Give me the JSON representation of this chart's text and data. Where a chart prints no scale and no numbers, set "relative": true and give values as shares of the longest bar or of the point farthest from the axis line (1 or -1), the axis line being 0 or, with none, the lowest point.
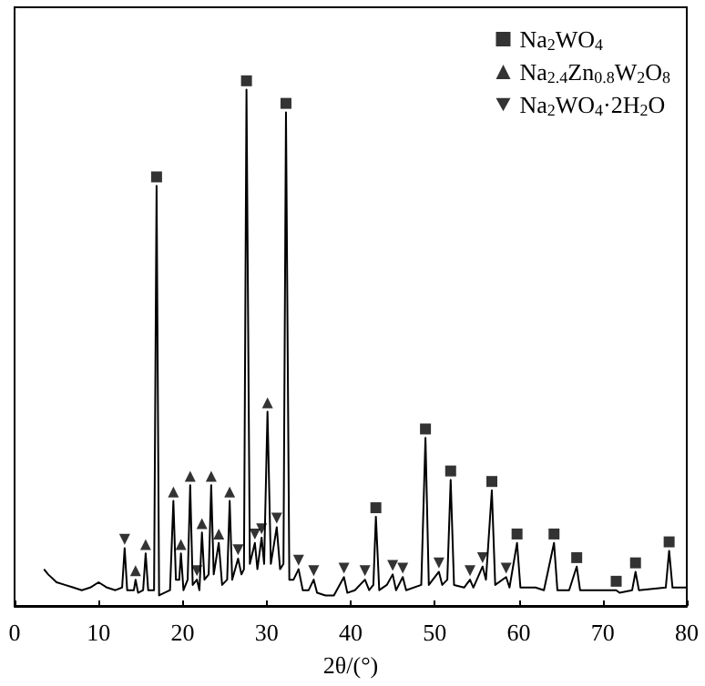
{
  "chart_data": {
    "type": "line",
    "relative": true,
    "xlabel": "2θ/(°)",
    "xlim": [
      0,
      80
    ],
    "xticks": [
      0,
      10,
      20,
      30,
      40,
      50,
      60,
      70,
      80
    ],
    "grid": false,
    "legend": "top right",
    "tick_labels": "x",
    "series": [
      {
        "color": "#000000",
        "marker": "none",
        "line_style": "solid",
        "x": [
          3.5,
          4,
          5,
          6,
          7,
          8,
          9,
          10,
          11,
          12,
          12.8,
          13.1,
          13.4,
          14.2,
          14.4,
          14.7,
          15.3,
          15.6,
          15.9,
          16.6,
          16.9,
          17.2,
          18.5,
          18.9,
          19.2,
          19.6,
          19.8,
          20.1,
          20.6,
          20.9,
          21.2,
          21.7,
          22.0,
          22.3,
          22.6,
          23.1,
          23.4,
          23.7,
          24.3,
          24.7,
          25.3,
          25.6,
          25.9,
          26.6,
          27.0,
          27.3,
          27.6,
          28.0,
          28.6,
          28.9,
          29.4,
          29.7,
          30.1,
          30.5,
          31.2,
          31.6,
          32.0,
          32.3,
          32.7,
          33.2,
          33.8,
          34.3,
          35.0,
          35.6,
          36.0,
          37,
          38,
          39.2,
          39.6,
          40.5,
          41.7,
          42.2,
          42.7,
          43.0,
          43.4,
          44.3,
          45.0,
          45.4,
          46.2,
          46.6,
          48.4,
          48.9,
          49.3,
          50.5,
          50.9,
          51.5,
          51.9,
          52.3,
          53.5,
          54.2,
          54.6,
          55.7,
          56.1,
          56.8,
          57.2,
          58.5,
          58.9,
          59.8,
          60.2,
          62,
          63,
          64.2,
          64.6,
          66,
          66.9,
          67.3,
          69,
          71.6,
          72,
          73.5,
          73.9,
          74.3,
          77.5,
          77.9,
          78.3,
          80
        ],
        "values": [
          0.07,
          0.06,
          0.045,
          0.04,
          0.035,
          0.03,
          0.035,
          0.045,
          0.035,
          0.03,
          0.035,
          0.11,
          0.03,
          0.03,
          0.05,
          0.025,
          0.03,
          0.1,
          0.03,
          0.03,
          0.8,
          0.02,
          0.03,
          0.2,
          0.05,
          0.05,
          0.1,
          0.03,
          0.05,
          0.23,
          0.04,
          0.05,
          0.03,
          0.14,
          0.05,
          0.06,
          0.23,
          0.06,
          0.12,
          0.04,
          0.05,
          0.2,
          0.05,
          0.09,
          0.06,
          0.07,
          0.983,
          0.08,
          0.12,
          0.07,
          0.13,
          0.08,
          0.37,
          0.08,
          0.15,
          0.07,
          0.08,
          0.94,
          0.05,
          0.05,
          0.07,
          0.03,
          0.03,
          0.05,
          0.025,
          0.02,
          0.02,
          0.055,
          0.025,
          0.03,
          0.05,
          0.03,
          0.04,
          0.17,
          0.03,
          0.04,
          0.06,
          0.03,
          0.055,
          0.03,
          0.04,
          0.32,
          0.04,
          0.065,
          0.04,
          0.05,
          0.24,
          0.04,
          0.035,
          0.05,
          0.035,
          0.075,
          0.05,
          0.22,
          0.04,
          0.055,
          0.035,
          0.12,
          0.035,
          0.035,
          0.03,
          0.12,
          0.03,
          0.03,
          0.075,
          0.03,
          0.03,
          0.03,
          0.025,
          0.03,
          0.065,
          0.03,
          0.035,
          0.105,
          0.035,
          0.035
        ]
      },
      {
        "type": "scatter",
        "name": "Na$_{2}$WO$_{4}$",
        "color": "#000000",
        "marker": "square",
        "x": [
          16.9,
          27.6,
          32.3,
          43.0,
          48.9,
          51.9,
          56.8,
          59.8,
          64.2,
          66.9,
          71.6,
          73.9,
          77.9
        ],
        "values": [
          0.817,
          1.0,
          0.957,
          0.187,
          0.337,
          0.257,
          0.237,
          0.137,
          0.137,
          0.092,
          0.047,
          0.082,
          0.122
        ]
      },
      {
        "type": "scatter",
        "name": "Na$_{2.4}$Zn$_{0.8}$W$_{2}$O$_{8}$",
        "color": "#000000",
        "marker": "triangle",
        "x": [
          14.4,
          15.6,
          18.9,
          19.8,
          20.9,
          22.3,
          23.4,
          24.3,
          25.6,
          30.1
        ],
        "values": [
          0.067,
          0.117,
          0.217,
          0.117,
          0.247,
          0.157,
          0.247,
          0.137,
          0.217,
          0.387
        ]
      },
      {
        "type": "scatter",
        "name": "Na$_{2}$WO$_{4}$·2H$_{2}$O",
        "color": "#000000",
        "marker": "triangle_down",
        "x": [
          13.1,
          21.7,
          26.6,
          28.6,
          29.4,
          31.2,
          33.8,
          35.6,
          39.2,
          41.7,
          45.0,
          46.2,
          50.5,
          54.2,
          55.7,
          58.5
        ],
        "values": [
          0.127,
          0.067,
          0.107,
          0.137,
          0.147,
          0.167,
          0.087,
          0.067,
          0.072,
          0.067,
          0.077,
          0.072,
          0.082,
          0.067,
          0.092,
          0.072
        ]
      }
    ]
  }
}
